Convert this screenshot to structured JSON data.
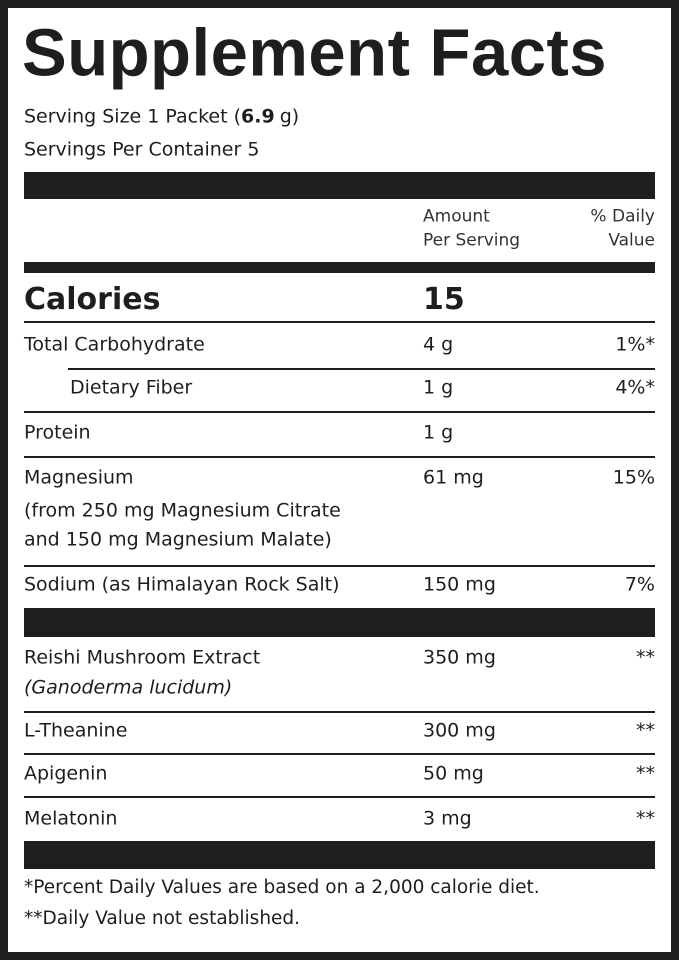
{
  "title": "Supplement Facts",
  "serving_size": {
    "label": "Serving Size 1 Packet (",
    "amount": "6.9",
    "unit": "g)"
  },
  "servings_per_container": "Servings Per Container 5",
  "header": {
    "amount": [
      "Amount",
      "Per Serving"
    ],
    "daily_value": [
      "% Daily",
      "Value"
    ]
  },
  "calories": {
    "label": "Calories",
    "amount": "15"
  },
  "nutrients": [
    {
      "name": "Total Carbohydrate",
      "amount": "4 g",
      "daily_value": "1%*"
    },
    {
      "name": "Dietary Fiber",
      "amount": "1 g",
      "daily_value": "4%*"
    },
    {
      "name": "Protein",
      "amount": "1 g"
    },
    {
      "name": "Magnesium",
      "note": [
        "(from 250 mg Magnesium Citrate",
        "and 150 mg Magnesium Malate)"
      ],
      "amount": "61 mg",
      "daily_value": "15%"
    },
    {
      "name": "Sodium (as Himalayan Rock Salt)",
      "amount": "150 mg",
      "daily_value": "7%"
    }
  ],
  "other_ingredients": [
    {
      "name": "Reishi Mushroom Extract",
      "note": [
        "(Ganoderma lucidum)"
      ],
      "amount": "350 mg",
      "daily_value": "**"
    },
    {
      "name": "L-Theanine",
      "amount": "300 mg",
      "daily_value": "**"
    },
    {
      "name": "Apigenin",
      "amount": "50 mg",
      "daily_value": "**"
    },
    {
      "name": "Melatonin",
      "amount": "3 mg",
      "daily_value": "**"
    }
  ],
  "footnotes": [
    "*Percent Daily Values are based on a 2,000 calorie diet.",
    "**Daily Value not established."
  ]
}
